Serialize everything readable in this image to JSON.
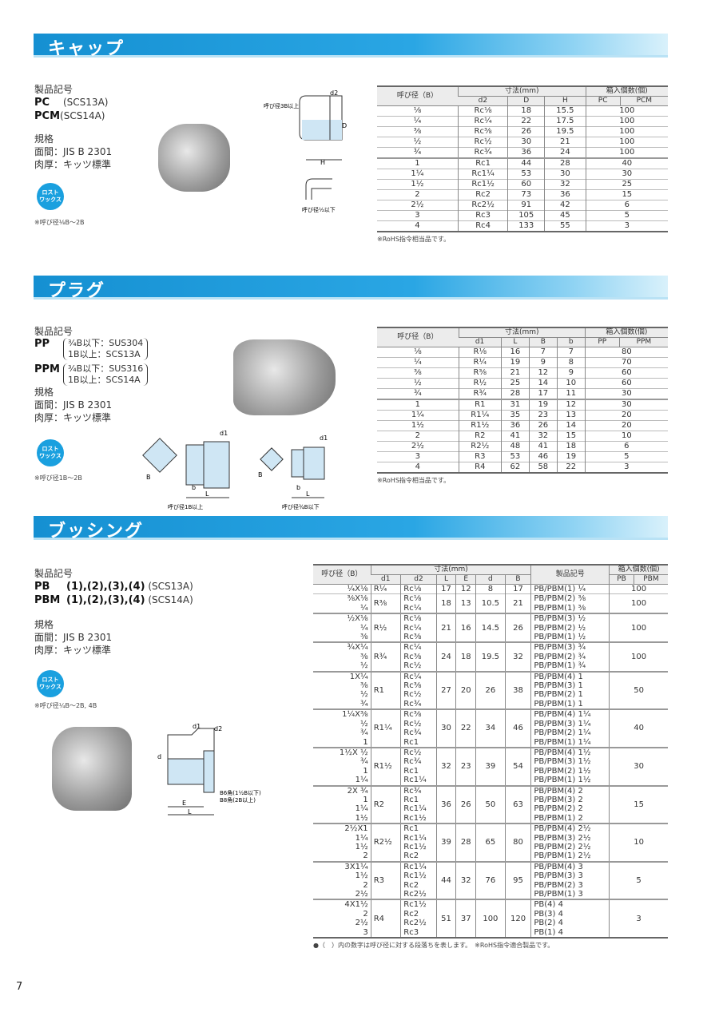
{
  "page_number": "7",
  "colors": {
    "header_blue": "#1590d2",
    "badge_blue": "#1aa0df"
  },
  "badge_label": [
    "ロスト",
    "ワックス"
  ],
  "cap": {
    "title": "キャップ",
    "code_label": "製品記号",
    "codes": [
      {
        "code": "PC",
        "material": "(SCS13A)"
      },
      {
        "code": "PCM",
        "material": "(SCS14A)"
      }
    ],
    "spec_label": "規格",
    "spec_face": "面間：JIS B 2301",
    "spec_wall": "肉厚：キッツ標準",
    "range_note": "※呼び径⅛B～2B",
    "diagram": {
      "label_large": "呼び径3B以上",
      "label_small": "呼び径½以下",
      "d2": "d2",
      "D": "D",
      "H": "H"
    },
    "table": {
      "h_size": "呼び径（B）",
      "h_dim": "寸法(mm)",
      "h_qty": "箱入個数(個)",
      "cols": [
        "d2",
        "D",
        "H"
      ],
      "qty_cols": [
        "PC",
        "PCM"
      ],
      "rows": [
        [
          "⅛",
          "Rc⅛",
          "18",
          "15.5",
          "100"
        ],
        [
          "¼",
          "Rc¼",
          "22",
          "17.5",
          "100"
        ],
        [
          "⅜",
          "Rc⅜",
          "26",
          "19.5",
          "100"
        ],
        [
          "½",
          "Rc½",
          "30",
          "21",
          "100"
        ],
        [
          "¾",
          "Rc¾",
          "36",
          "24",
          "100"
        ],
        [
          "1",
          "Rc1",
          "44",
          "28",
          "40"
        ],
        [
          "1¼",
          "Rc1¼",
          "53",
          "30",
          "30"
        ],
        [
          "1½",
          "Rc1½",
          "60",
          "32",
          "25"
        ],
        [
          "2",
          "Rc2",
          "73",
          "36",
          "15"
        ],
        [
          "2½",
          "Rc2½",
          "91",
          "42",
          "6"
        ],
        [
          "3",
          "Rc3",
          "105",
          "45",
          "5"
        ],
        [
          "4",
          "Rc4",
          "133",
          "55",
          "3"
        ]
      ],
      "note": "※RoHS指令相当品です。"
    }
  },
  "plug": {
    "title": "プラグ",
    "code_label": "製品記号",
    "codes": [
      {
        "code": "PP",
        "mat1": "¾B以下：SUS304",
        "mat2": "1B以上：SCS13A"
      },
      {
        "code": "PPM",
        "mat1": "¾B以下：SUS316",
        "mat2": "1B以上：SCS14A"
      }
    ],
    "spec_label": "規格",
    "spec_face": "面間：JIS B 2301",
    "spec_wall": "肉厚：キッツ標準",
    "range_note": "※呼び径1B～2B",
    "diagram": {
      "label_large": "呼び径1B以上",
      "label_small": "呼び径¾B以下",
      "d1": "d1",
      "B": "B",
      "b": "b",
      "L": "L"
    },
    "table": {
      "h_size": "呼び径（B）",
      "h_dim": "寸法(mm)",
      "h_qty": "箱入個数(個)",
      "cols": [
        "d1",
        "L",
        "B",
        "b"
      ],
      "qty_cols": [
        "PP",
        "PPM"
      ],
      "rows": [
        [
          "⅛",
          "R⅛",
          "16",
          "7",
          "7",
          "80"
        ],
        [
          "¼",
          "R¼",
          "19",
          "9",
          "8",
          "70"
        ],
        [
          "⅜",
          "R⅜",
          "21",
          "12",
          "9",
          "60"
        ],
        [
          "½",
          "R½",
          "25",
          "14",
          "10",
          "60"
        ],
        [
          "¾",
          "R¾",
          "28",
          "17",
          "11",
          "30"
        ],
        [
          "1",
          "R1",
          "31",
          "19",
          "12",
          "30"
        ],
        [
          "1¼",
          "R1¼",
          "35",
          "23",
          "13",
          "20"
        ],
        [
          "1½",
          "R1½",
          "36",
          "26",
          "14",
          "20"
        ],
        [
          "2",
          "R2",
          "41",
          "32",
          "15",
          "10"
        ],
        [
          "2½",
          "R2½",
          "48",
          "41",
          "18",
          "6"
        ],
        [
          "3",
          "R3",
          "53",
          "46",
          "19",
          "5"
        ],
        [
          "4",
          "R4",
          "62",
          "58",
          "22",
          "3"
        ]
      ],
      "note": "※RoHS指令相当品です。"
    }
  },
  "bushing": {
    "title": "ブッシング",
    "code_label": "製品記号",
    "codes": [
      {
        "code": "PB",
        "types": "(1),(2),(3),(4)",
        "material": "(SCS13A)"
      },
      {
        "code": "PBM",
        "types": "(1),(2),(3),(4)",
        "material": "(SCS14A)"
      }
    ],
    "spec_label": "規格",
    "spec_face": "面間：JIS B 2301",
    "spec_wall": "肉厚：キッツ標準",
    "range_note": "※呼び径¼B～2B, 4B",
    "diagram": {
      "d1": "d1",
      "d2": "d2",
      "d": "d",
      "E": "E",
      "L": "L",
      "hex1": "B6角(1½B以下)",
      "hex2": "B8角(2B以上)"
    },
    "table": {
      "h_size": "呼び径（B）",
      "h_dim": "寸法(mm)",
      "h_code": "製品記号",
      "h_qty": "箱入個数(個)",
      "cols": [
        "d1",
        "d2",
        "L",
        "E",
        "d",
        "B"
      ],
      "qty_cols": [
        "PB",
        "PBM"
      ],
      "groups": [
        {
          "sizes": [
            "¼X⅛"
          ],
          "d1": "R¼",
          "d2": [
            "Rc⅛"
          ],
          "L": "17",
          "E": "12",
          "d": "8",
          "B": "17",
          "codes": [
            "PB/PBM(1) ¼"
          ],
          "qty": "100"
        },
        {
          "sizes": [
            "⅜X⅛",
            "¼"
          ],
          "d1": "R⅜",
          "d2": [
            "Rc⅛",
            "Rc¼"
          ],
          "L": "18",
          "E": "13",
          "d": "10.5",
          "B": "21",
          "codes": [
            "PB/PBM(2) ⅜",
            "PB/PBM(1) ⅜"
          ],
          "qty": "100"
        },
        {
          "sizes": [
            "½X⅛",
            "¼",
            "⅜"
          ],
          "d1": "R½",
          "d2": [
            "Rc⅛",
            "Rc¼",
            "Rc⅜"
          ],
          "L": "21",
          "E": "16",
          "d": "14.5",
          "B": "26",
          "codes": [
            "PB/PBM(3) ½",
            "PB/PBM(2) ½",
            "PB/PBM(1) ½"
          ],
          "qty": "100"
        },
        {
          "sizes": [
            "¾X¼",
            "⅜",
            "½"
          ],
          "d1": "R¾",
          "d2": [
            "Rc¼",
            "Rc⅜",
            "Rc½"
          ],
          "L": "24",
          "E": "18",
          "d": "19.5",
          "B": "32",
          "codes": [
            "PB/PBM(3) ¾",
            "PB/PBM(2) ¾",
            "PB/PBM(1) ¾"
          ],
          "qty": "100"
        },
        {
          "sizes": [
            "1X¼",
            "⅜",
            "½",
            "¾"
          ],
          "d1": "R1",
          "d2": [
            "Rc¼",
            "Rc⅜",
            "Rc½",
            "Rc¾"
          ],
          "L": "27",
          "E": "20",
          "d": "26",
          "B": "38",
          "codes": [
            "PB/PBM(4) 1",
            "PB/PBM(3) 1",
            "PB/PBM(2) 1",
            "PB/PBM(1) 1"
          ],
          "qty": "50"
        },
        {
          "sizes": [
            "1¼X⅜",
            "½",
            "¾",
            "1"
          ],
          "d1": "R1¼",
          "d2": [
            "Rc⅜",
            "Rc½",
            "Rc¾",
            "Rc1"
          ],
          "L": "30",
          "E": "22",
          "d": "34",
          "B": "46",
          "codes": [
            "PB/PBM(4) 1¼",
            "PB/PBM(3) 1¼",
            "PB/PBM(2) 1¼",
            "PB/PBM(1) 1¼"
          ],
          "qty": "40"
        },
        {
          "sizes": [
            "1½X ½",
            "¾",
            "1",
            "1¼"
          ],
          "d1": "R1½",
          "d2": [
            "Rc½",
            "Rc¾",
            "Rc1",
            "Rc1¼"
          ],
          "L": "32",
          "E": "23",
          "d": "39",
          "B": "54",
          "codes": [
            "PB/PBM(4) 1½",
            "PB/PBM(3) 1½",
            "PB/PBM(2) 1½",
            "PB/PBM(1) 1½"
          ],
          "qty": "30"
        },
        {
          "sizes": [
            "2X ¾",
            "1",
            "1¼",
            "1½"
          ],
          "d1": "R2",
          "d2": [
            "Rc¾",
            "Rc1",
            "Rc1¼",
            "Rc1½"
          ],
          "L": "36",
          "E": "26",
          "d": "50",
          "B": "63",
          "codes": [
            "PB/PBM(4) 2",
            "PB/PBM(3) 2",
            "PB/PBM(2) 2",
            "PB/PBM(1) 2"
          ],
          "qty": "15"
        },
        {
          "sizes": [
            "2½X1",
            "1¼",
            "1½",
            "2"
          ],
          "d1": "R2½",
          "d2": [
            "Rc1",
            "Rc1¼",
            "Rc1½",
            "Rc2"
          ],
          "L": "39",
          "E": "28",
          "d": "65",
          "B": "80",
          "codes": [
            "PB/PBM(4) 2½",
            "PB/PBM(3) 2½",
            "PB/PBM(2) 2½",
            "PB/PBM(1) 2½"
          ],
          "qty": "10"
        },
        {
          "sizes": [
            "3X1¼",
            "1½",
            "2",
            "2½"
          ],
          "d1": "R3",
          "d2": [
            "Rc1¼",
            "Rc1½",
            "Rc2",
            "Rc2½"
          ],
          "L": "44",
          "E": "32",
          "d": "76",
          "B": "95",
          "codes": [
            "PB/PBM(4) 3",
            "PB/PBM(3) 3",
            "PB/PBM(2) 3",
            "PB/PBM(1) 3"
          ],
          "qty": "5"
        },
        {
          "sizes": [
            "4X1½",
            "2",
            "2½",
            "3"
          ],
          "d1": "R4",
          "d2": [
            "Rc1½",
            "Rc2",
            "Rc2½",
            "Rc3"
          ],
          "L": "51",
          "E": "37",
          "d": "100",
          "B": "120",
          "codes": [
            "PB(4) 4",
            "PB(3) 4",
            "PB(2) 4",
            "PB(1) 4"
          ],
          "qty": "3"
        }
      ],
      "note": "●（　）内の数字は呼び径に対する段落ちを表します。　※RoHS指令適合製品です。"
    }
  }
}
